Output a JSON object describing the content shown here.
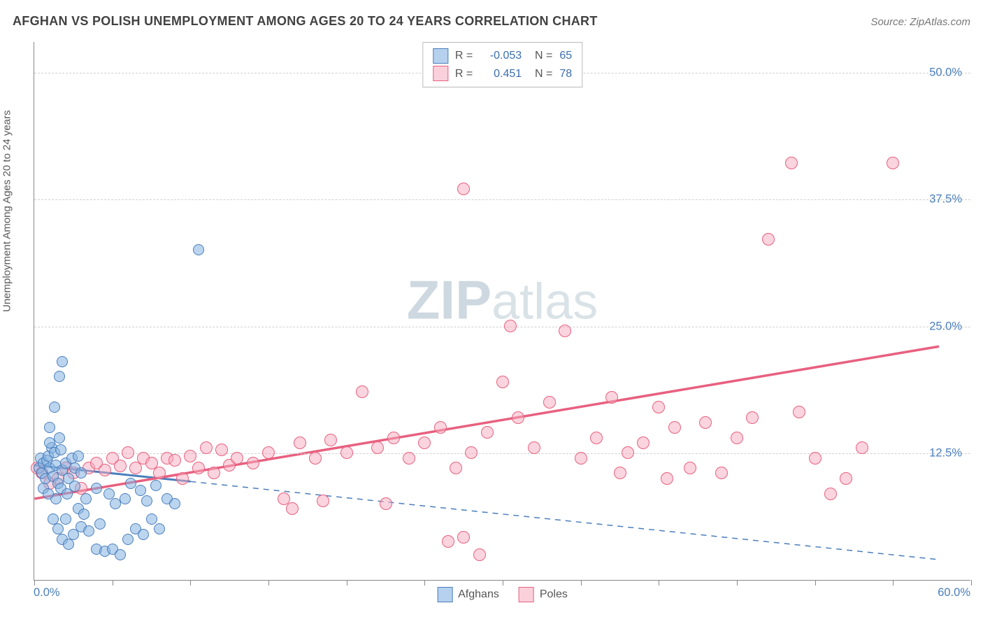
{
  "title": "AFGHAN VS POLISH UNEMPLOYMENT AMONG AGES 20 TO 24 YEARS CORRELATION CHART",
  "source": "Source: ZipAtlas.com",
  "watermark_bold": "ZIP",
  "watermark_light": "atlas",
  "chart": {
    "type": "scatter",
    "ylabel": "Unemployment Among Ages 20 to 24 years",
    "xlim": [
      0,
      60
    ],
    "ylim": [
      0,
      53
    ],
    "x_origin_label": "0.0%",
    "x_max_label": "60.0%",
    "y_ticks": [
      {
        "v": 12.5,
        "label": "12.5%"
      },
      {
        "v": 25.0,
        "label": "25.0%"
      },
      {
        "v": 37.5,
        "label": "37.5%"
      },
      {
        "v": 50.0,
        "label": "50.0%"
      }
    ],
    "x_tick_positions": [
      0,
      5,
      10,
      15,
      20,
      25,
      30,
      35,
      40,
      45,
      50,
      55,
      60
    ],
    "legend_bottom": [
      {
        "swatch": "b",
        "label": "Afghans"
      },
      {
        "swatch": "p",
        "label": "Poles"
      }
    ],
    "legend_top": [
      {
        "swatch": "b",
        "r": "-0.053",
        "n": "65"
      },
      {
        "swatch": "p",
        "r": "0.451",
        "n": "78"
      }
    ],
    "colors": {
      "blue_fill": "rgba(133,178,226,0.55)",
      "blue_stroke": "#4a7ebb",
      "pink_fill": "rgba(245,170,190,0.5)",
      "pink_stroke": "#e8607f",
      "grid": "#d0d0d0",
      "axis": "#888",
      "label_blue": "#4a7ebb",
      "text": "#5a5a5a",
      "bg": "#ffffff"
    },
    "trend_lines": {
      "blue": {
        "x1": 0,
        "y1": 11.3,
        "x2": 58,
        "y2": 2.0,
        "dash_after_x": 10,
        "width": 3
      },
      "pink": {
        "x1": 0,
        "y1": 8.0,
        "x2": 58,
        "y2": 23.0,
        "width": 3.5
      }
    },
    "series": {
      "afghans": [
        [
          0.3,
          11
        ],
        [
          0.4,
          12
        ],
        [
          0.5,
          10.5
        ],
        [
          0.6,
          11.5
        ],
        [
          0.7,
          10
        ],
        [
          0.8,
          11.8
        ],
        [
          0.9,
          12.2
        ],
        [
          1.0,
          11
        ],
        [
          1.1,
          13
        ],
        [
          1.2,
          10.2
        ],
        [
          1.3,
          12.5
        ],
        [
          1.4,
          11.3
        ],
        [
          1.5,
          9.5
        ],
        [
          1.6,
          14
        ],
        [
          1.7,
          12.8
        ],
        [
          1.8,
          10.8
        ],
        [
          1.0,
          15
        ],
        [
          1.3,
          17
        ],
        [
          1.8,
          21.5
        ],
        [
          1.6,
          20
        ],
        [
          1.0,
          13.5
        ],
        [
          2.0,
          11.5
        ],
        [
          2.2,
          10
        ],
        [
          2.4,
          12
        ],
        [
          2.6,
          11
        ],
        [
          2.8,
          12.2
        ],
        [
          3.0,
          10.5
        ],
        [
          1.2,
          6
        ],
        [
          1.5,
          5
        ],
        [
          2.0,
          6
        ],
        [
          2.5,
          4.5
        ],
        [
          3.0,
          5.2
        ],
        [
          3.5,
          4.8
        ],
        [
          4.0,
          3
        ],
        [
          4.5,
          2.8
        ],
        [
          1.8,
          4
        ],
        [
          2.2,
          3.5
        ],
        [
          2.8,
          7
        ],
        [
          3.2,
          6.5
        ],
        [
          4.2,
          5.5
        ],
        [
          5.0,
          3
        ],
        [
          6.0,
          4
        ],
        [
          6.5,
          5
        ],
        [
          7.0,
          4.5
        ],
        [
          7.5,
          6
        ],
        [
          8.0,
          5
        ],
        [
          5.5,
          2.5
        ],
        [
          1.4,
          8
        ],
        [
          1.7,
          9
        ],
        [
          2.1,
          8.5
        ],
        [
          2.6,
          9.2
        ],
        [
          3.3,
          8
        ],
        [
          4.0,
          9
        ],
        [
          4.8,
          8.5
        ],
        [
          5.2,
          7.5
        ],
        [
          5.8,
          8
        ],
        [
          6.2,
          9.5
        ],
        [
          6.8,
          8.8
        ],
        [
          7.2,
          7.8
        ],
        [
          7.8,
          9.3
        ],
        [
          8.5,
          8
        ],
        [
          9.0,
          7.5
        ],
        [
          0.6,
          9
        ],
        [
          0.9,
          8.5
        ],
        [
          10.5,
          32.5
        ]
      ],
      "poles": [
        [
          0.2,
          11
        ],
        [
          0.5,
          10.5
        ],
        [
          1.0,
          9.5
        ],
        [
          1.5,
          10
        ],
        [
          2.0,
          11
        ],
        [
          2.5,
          10.5
        ],
        [
          3.0,
          9
        ],
        [
          3.5,
          11
        ],
        [
          4.0,
          11.5
        ],
        [
          4.5,
          10.8
        ],
        [
          5.0,
          12
        ],
        [
          5.5,
          11.2
        ],
        [
          6.0,
          12.5
        ],
        [
          6.5,
          11
        ],
        [
          7.0,
          12
        ],
        [
          7.5,
          11.5
        ],
        [
          8.0,
          10.5
        ],
        [
          8.5,
          12
        ],
        [
          9.0,
          11.8
        ],
        [
          9.5,
          10
        ],
        [
          10.0,
          12.2
        ],
        [
          10.5,
          11
        ],
        [
          11.0,
          13
        ],
        [
          11.5,
          10.5
        ],
        [
          12.0,
          12.8
        ],
        [
          12.5,
          11.3
        ],
        [
          13.0,
          12
        ],
        [
          14.0,
          11.5
        ],
        [
          15.0,
          12.5
        ],
        [
          16.0,
          8
        ],
        [
          17.0,
          13.5
        ],
        [
          18.0,
          12
        ],
        [
          19.0,
          13.8
        ],
        [
          20.0,
          12.5
        ],
        [
          21.0,
          18.5
        ],
        [
          22.0,
          13
        ],
        [
          23.0,
          14
        ],
        [
          24.0,
          12
        ],
        [
          25.0,
          13.5
        ],
        [
          26.0,
          15
        ],
        [
          27.0,
          11
        ],
        [
          27.5,
          38.5
        ],
        [
          28.0,
          12.5
        ],
        [
          29.0,
          14.5
        ],
        [
          30.0,
          19.5
        ],
        [
          30.5,
          25
        ],
        [
          31.0,
          16
        ],
        [
          32.0,
          13
        ],
        [
          33.0,
          17.5
        ],
        [
          34.0,
          24.5
        ],
        [
          35.0,
          12
        ],
        [
          36.0,
          14
        ],
        [
          37.0,
          18
        ],
        [
          38.0,
          12.5
        ],
        [
          39.0,
          13.5
        ],
        [
          40.0,
          17
        ],
        [
          41.0,
          15
        ],
        [
          42.0,
          11
        ],
        [
          43.0,
          15.5
        ],
        [
          44.0,
          10.5
        ],
        [
          45.0,
          14
        ],
        [
          26.5,
          3.8
        ],
        [
          27.5,
          4.2
        ],
        [
          28.5,
          2.5
        ],
        [
          22.5,
          7.5
        ],
        [
          18.5,
          7.8
        ],
        [
          16.5,
          7
        ],
        [
          47.0,
          33.5
        ],
        [
          48.5,
          41
        ],
        [
          55.0,
          41
        ],
        [
          46.0,
          16
        ],
        [
          49.0,
          16.5
        ],
        [
          50.0,
          12
        ],
        [
          51.0,
          8.5
        ],
        [
          52.0,
          10
        ],
        [
          53.0,
          13
        ],
        [
          40.5,
          10
        ],
        [
          37.5,
          10.5
        ]
      ]
    }
  }
}
